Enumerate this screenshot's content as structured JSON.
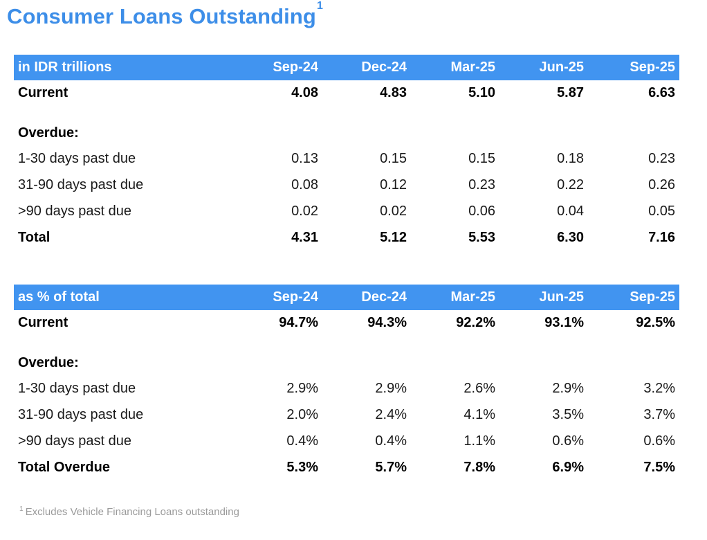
{
  "title": "Consumer Loans Outstanding",
  "title_sup": "1",
  "accent_color": "#4194f0",
  "title_color": "#3d8ee8",
  "periods": [
    "Sep-24",
    "Dec-24",
    "Mar-25",
    "Jun-25",
    "Sep-25"
  ],
  "table1": {
    "header_label": "in IDR trillions",
    "rows": [
      {
        "label": "Current",
        "values": [
          "4.08",
          "4.83",
          "5.10",
          "5.87",
          "6.63"
        ],
        "bold": true
      },
      {
        "label": "Overdue:",
        "values": [],
        "bold": true,
        "section": true
      },
      {
        "label": "1-30 days past due",
        "values": [
          "0.13",
          "0.15",
          "0.15",
          "0.18",
          "0.23"
        ]
      },
      {
        "label": "31-90 days past due",
        "values": [
          "0.08",
          "0.12",
          "0.23",
          "0.22",
          "0.26"
        ]
      },
      {
        "label": ">90 days past due",
        "values": [
          "0.02",
          "0.02",
          "0.06",
          "0.04",
          "0.05"
        ]
      },
      {
        "label": "Total",
        "values": [
          "4.31",
          "5.12",
          "5.53",
          "6.30",
          "7.16"
        ],
        "bold": true
      }
    ]
  },
  "table2": {
    "header_label": "as % of total",
    "rows": [
      {
        "label": "Current",
        "values": [
          "94.7%",
          "94.3%",
          "92.2%",
          "93.1%",
          "92.5%"
        ],
        "bold": true
      },
      {
        "label": "Overdue:",
        "values": [],
        "bold": true,
        "section": true
      },
      {
        "label": "1-30 days past due",
        "values": [
          "2.9%",
          "2.9%",
          "2.6%",
          "2.9%",
          "3.2%"
        ]
      },
      {
        "label": "31-90 days past due",
        "values": [
          "2.0%",
          "2.4%",
          "4.1%",
          "3.5%",
          "3.7%"
        ]
      },
      {
        "label": ">90 days past due",
        "values": [
          "0.4%",
          "0.4%",
          "1.1%",
          "0.6%",
          "0.6%"
        ]
      },
      {
        "label": "Total Overdue",
        "values": [
          "5.3%",
          "5.7%",
          "7.8%",
          "6.9%",
          "7.5%"
        ],
        "bold": true
      }
    ]
  },
  "footnote": {
    "marker": "1",
    "text": "Excludes Vehicle Financing Loans outstanding"
  }
}
